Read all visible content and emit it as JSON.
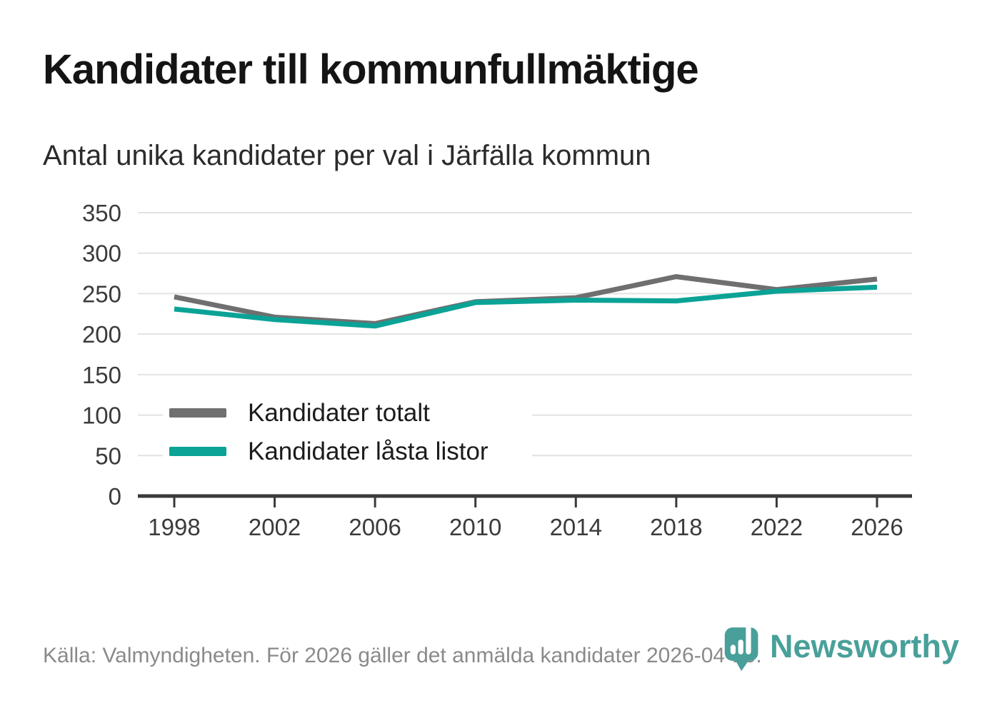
{
  "header": {
    "title": "Kandidater till kommunfullmäktige",
    "subtitle": "Antal unika kandidater per val i Järfälla kommun"
  },
  "chart_data": {
    "type": "line",
    "title": "Kandidater till kommunfullmäktige",
    "subtitle": "Antal unika kandidater per val i Järfälla kommun",
    "x": [
      1998,
      2002,
      2006,
      2010,
      2014,
      2018,
      2022,
      2026
    ],
    "series": [
      {
        "name": "Kandidater totalt",
        "color": "#6f6f6f",
        "values": [
          246,
          221,
          213,
          240,
          245,
          271,
          255,
          268
        ]
      },
      {
        "name": "Kandidater låsta listor",
        "color": "#0aa396",
        "values": [
          231,
          218,
          210,
          239,
          242,
          241,
          253,
          258
        ]
      }
    ],
    "xlabel": "",
    "ylabel": "",
    "ylim": [
      0,
      350
    ],
    "ytick_step": 50,
    "grid": "horizontal",
    "legend_position": "inside-left"
  },
  "footer": {
    "source": "Källa: Valmyndigheten. För 2026 gäller det anmälda kandidater 2026-04-10.",
    "brand": "Newsworthy"
  },
  "colors": {
    "axis": "#3a3a3a",
    "gridline": "#e2e2e2",
    "footer_text": "#8a8a8a",
    "brand_teal": "#49a09a"
  }
}
